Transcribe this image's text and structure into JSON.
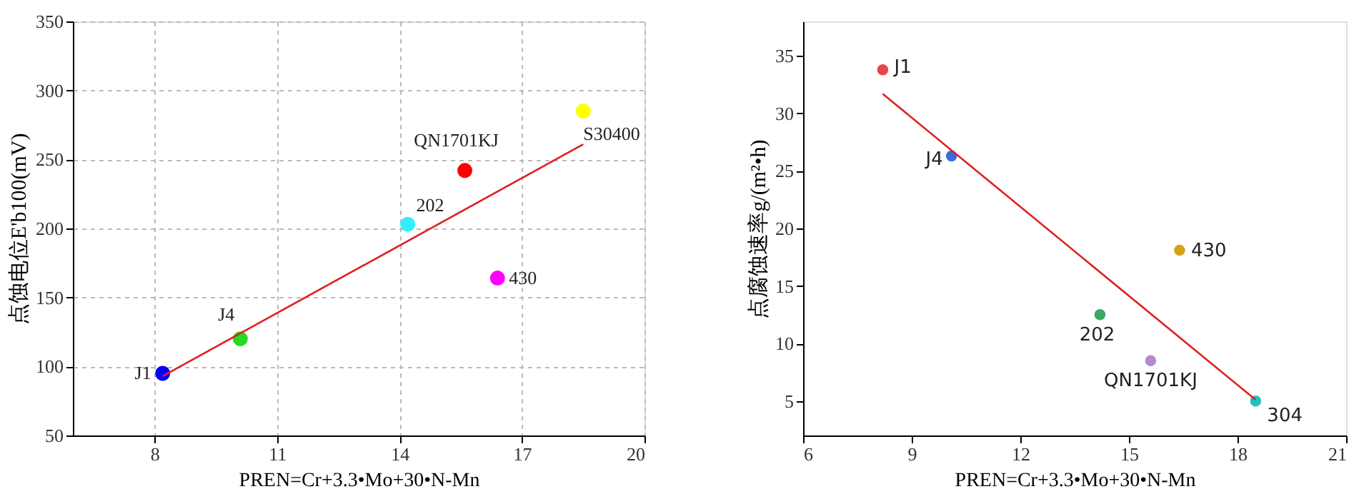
{
  "chart_data": [
    {
      "type": "scatter",
      "xlabel": "PREN=Cr+3.3•Mo+30•N-Mn",
      "ylabel": "点蚀电位E'b100(mV)",
      "xlim": [
        6,
        20
      ],
      "xticks": [
        8,
        11,
        14,
        17,
        20
      ],
      "ylim": [
        50,
        350
      ],
      "yticks": [
        50,
        100,
        150,
        200,
        250,
        300,
        350
      ],
      "grid": true,
      "marker": "circle",
      "series": [
        {
          "name": "J1",
          "color": "#0000ff",
          "x": [
            8.2
          ],
          "values": [
            95
          ]
        },
        {
          "name": "J4",
          "color": "#22dd22",
          "x": [
            10.1
          ],
          "values": [
            120
          ]
        },
        {
          "name": "202",
          "color": "#33eeff",
          "x": [
            14.2
          ],
          "values": [
            203
          ]
        },
        {
          "name": "QN1701KJ",
          "color": "#ff0000",
          "x": [
            15.6
          ],
          "values": [
            242
          ]
        },
        {
          "name": "430",
          "color": "#ff00ff",
          "x": [
            16.4
          ],
          "values": [
            164
          ]
        },
        {
          "name": "S30400",
          "color": "#ffff00",
          "x": [
            18.5
          ],
          "values": [
            285
          ]
        },
        {
          "type": "line",
          "marker": "none",
          "color": "#e02020",
          "x": [
            8.2,
            18.5
          ],
          "values": [
            93,
            261
          ]
        }
      ]
    },
    {
      "type": "scatter",
      "xlabel": "PREN=Cr+3.3•Mo+30•N-Mn",
      "ylabel": "点腐蚀速率g/(m²•h)",
      "xlim": [
        6,
        21
      ],
      "xticks": [
        6,
        9,
        12,
        15,
        18,
        21
      ],
      "ylim": [
        2,
        38
      ],
      "yticks": [
        5,
        10,
        15,
        20,
        25,
        30,
        35
      ],
      "grid": false,
      "marker": "circle",
      "series": [
        {
          "name": "J1",
          "color": "#e8454a",
          "x": [
            8.2
          ],
          "values": [
            33.8
          ]
        },
        {
          "name": "J4",
          "color": "#3a6fd8",
          "x": [
            10.1
          ],
          "values": [
            26.3
          ]
        },
        {
          "name": "202",
          "color": "#3aa860",
          "x": [
            14.2
          ],
          "values": [
            12.5
          ]
        },
        {
          "name": "QN1701KJ",
          "color": "#b38ad8",
          "x": [
            15.6
          ],
          "values": [
            8.5
          ]
        },
        {
          "name": "430",
          "color": "#d4a017",
          "x": [
            16.4
          ],
          "values": [
            18.1
          ]
        },
        {
          "name": "304",
          "color": "#20c0c0",
          "x": [
            18.5
          ],
          "values": [
            5
          ]
        },
        {
          "type": "line",
          "marker": "none",
          "color": "#e02020",
          "x": [
            8.2,
            18.5
          ],
          "values": [
            31.7,
            5.1
          ]
        }
      ]
    }
  ]
}
